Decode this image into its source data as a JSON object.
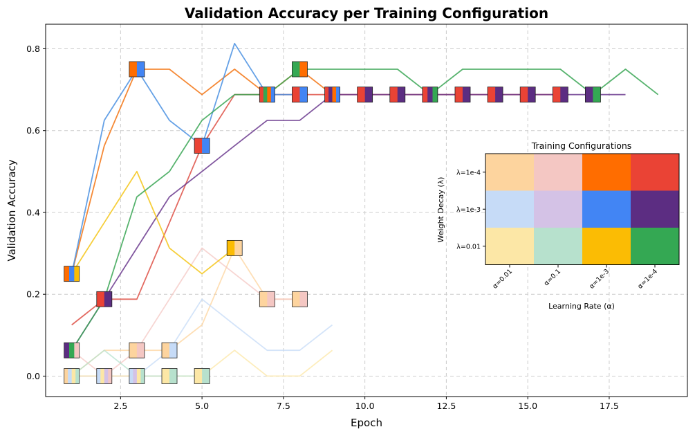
{
  "chart_data": {
    "type": "line",
    "title": "Validation Accuracy per Training Configuration",
    "xlabel": "Epoch",
    "ylabel": "Validation Accuracy",
    "xlim": [
      0.2,
      19.9
    ],
    "ylim": [
      -0.05,
      0.86
    ],
    "xticks": [
      2.5,
      5.0,
      7.5,
      10.0,
      12.5,
      15.0,
      17.5
    ],
    "xtick_labels": [
      "2.5",
      "5.0",
      "7.5",
      "10.0",
      "12.5",
      "15.0",
      "17.5"
    ],
    "yticks": [
      0.0,
      0.2,
      0.4,
      0.6,
      0.8
    ],
    "ytick_labels": [
      "0.0",
      "0.2",
      "0.4",
      "0.6",
      "0.8"
    ],
    "grid": true,
    "series": [
      {
        "key": "lr0.01_wd1e-4",
        "color": "#fdd49e",
        "alpha": 0.75,
        "x": [
          1,
          2,
          3,
          4,
          5,
          6,
          7,
          8
        ],
        "values": [
          0.0,
          0.063,
          0.063,
          0.063,
          0.125,
          0.313,
          0.188,
          0.188
        ]
      },
      {
        "key": "lr0.1_wd1e-4",
        "color": "#f4c7c3",
        "alpha": 0.75,
        "x": [
          1,
          2,
          3,
          4,
          5,
          6,
          7,
          8
        ],
        "values": [
          0.063,
          0.0,
          0.063,
          0.188,
          0.313,
          0.25,
          0.188,
          0.188
        ]
      },
      {
        "key": "lr1e-3_wd1e-4",
        "color": "#f47c20",
        "alpha": 0.9,
        "x": [
          1,
          2,
          3,
          4,
          5,
          6,
          7,
          8,
          9
        ],
        "values": [
          0.25,
          0.563,
          0.75,
          0.75,
          0.688,
          0.75,
          0.688,
          0.75,
          0.688
        ]
      },
      {
        "key": "lr1e-4_wd1e-4",
        "color": "#e05a50",
        "alpha": 0.9,
        "x": [
          1,
          2,
          3,
          4,
          5,
          6,
          7,
          8,
          9,
          10,
          11,
          12,
          13,
          14,
          15,
          16
        ],
        "values": [
          0.125,
          0.188,
          0.188,
          0.375,
          0.563,
          0.688,
          0.688,
          0.688,
          0.688,
          0.688,
          0.688,
          0.688,
          0.688,
          0.688,
          0.688,
          0.688
        ]
      },
      {
        "key": "lr0.01_wd1e-3",
        "color": "#c6dbf7",
        "alpha": 0.75,
        "x": [
          1,
          2,
          3,
          4,
          5,
          6,
          7,
          8,
          9
        ],
        "values": [
          0.0,
          0.0,
          0.0,
          0.063,
          0.188,
          0.125,
          0.063,
          0.063,
          0.125
        ]
      },
      {
        "key": "lr0.1_wd1e-3",
        "color": "#d4c2e6",
        "alpha": 0.75,
        "x": [
          1,
          2,
          3,
          4
        ],
        "values": [
          0.0,
          0.0,
          0.0,
          0.0
        ]
      },
      {
        "key": "lr1e-3_wd1e-3",
        "color": "#4a90e2",
        "alpha": 0.85,
        "x": [
          1,
          2,
          3,
          4,
          5,
          6,
          7,
          8
        ],
        "values": [
          0.25,
          0.625,
          0.75,
          0.625,
          0.563,
          0.813,
          0.688,
          0.688
        ]
      },
      {
        "key": "lr1e-4_wd1e-3",
        "color": "#6b3a8e",
        "alpha": 0.85,
        "x": [
          1,
          2,
          3,
          4,
          5,
          6,
          7,
          8,
          9,
          10,
          11,
          12,
          13,
          14,
          15,
          16,
          17,
          18
        ],
        "values": [
          0.063,
          0.188,
          0.313,
          0.438,
          0.5,
          0.563,
          0.625,
          0.625,
          0.688,
          0.688,
          0.688,
          0.688,
          0.688,
          0.688,
          0.688,
          0.688,
          0.688,
          0.688
        ]
      },
      {
        "key": "lr0.01_wd0.01",
        "color": "#fce7a6",
        "alpha": 0.75,
        "x": [
          1,
          2,
          3,
          4,
          5,
          6,
          7,
          8,
          9
        ],
        "values": [
          0.0,
          0.0,
          0.0,
          0.0,
          0.0,
          0.063,
          0.0,
          0.0,
          0.063
        ]
      },
      {
        "key": "lr0.1_wd0.01",
        "color": "#b7e1cd",
        "alpha": 0.75,
        "x": [
          1,
          2,
          3,
          4,
          5
        ],
        "values": [
          0.0,
          0.063,
          0.0,
          0.0,
          0.0
        ]
      },
      {
        "key": "lr1e-3_wd0.01",
        "color": "#f5c518",
        "alpha": 0.85,
        "x": [
          1,
          2,
          3,
          4,
          5,
          6
        ],
        "values": [
          0.25,
          0.375,
          0.5,
          0.313,
          0.25,
          0.313
        ]
      },
      {
        "key": "lr1e-4_wd0.01",
        "color": "#3aa655",
        "alpha": 0.85,
        "x": [
          1,
          2,
          3,
          4,
          5,
          6,
          7,
          8,
          9,
          10,
          11,
          12,
          13,
          14,
          15,
          16,
          17,
          18,
          19
        ],
        "values": [
          0.063,
          0.188,
          0.438,
          0.5,
          0.625,
          0.688,
          0.688,
          0.75,
          0.75,
          0.75,
          0.75,
          0.688,
          0.75,
          0.75,
          0.75,
          0.75,
          0.688,
          0.75,
          0.688
        ]
      }
    ],
    "markers": [
      {
        "x": 1,
        "y": 0.25,
        "colors": [
          "#ff6d00",
          "#4285f4",
          "#fbbc04"
        ]
      },
      {
        "x": 3,
        "y": 0.75,
        "colors": [
          "#ff6d00",
          "#4285f4"
        ]
      },
      {
        "x": 5,
        "y": 0.563,
        "colors": [
          "#ea4335",
          "#4285f4"
        ]
      },
      {
        "x": 6,
        "y": 0.313,
        "colors": [
          "#fbbc04",
          "#fdd49e"
        ]
      },
      {
        "x": 2,
        "y": 0.188,
        "colors": [
          "#ea4335",
          "#5c2d82"
        ]
      },
      {
        "x": 1,
        "y": 0.063,
        "colors": [
          "#5c2d82",
          "#34a853",
          "#f4c7c3"
        ]
      },
      {
        "x": 3,
        "y": 0.063,
        "colors": [
          "#fdd49e",
          "#f4c7c3"
        ]
      },
      {
        "x": 4,
        "y": 0.063,
        "colors": [
          "#fdd49e",
          "#c6dbf7"
        ]
      },
      {
        "x": 1,
        "y": 0.0,
        "colors": [
          "#fdd49e",
          "#c6dbf7",
          "#fce7a6",
          "#b7e1cd"
        ]
      },
      {
        "x": 2,
        "y": 0.0,
        "colors": [
          "#c6dbf7",
          "#fce7a6",
          "#d4c2e6",
          "#f4c7c3"
        ]
      },
      {
        "x": 3,
        "y": 0.0,
        "colors": [
          "#c6dbf7",
          "#d4c2e6",
          "#fce7a6",
          "#b7e1cd"
        ]
      },
      {
        "x": 4,
        "y": 0.0,
        "colors": [
          "#fce7a6",
          "#b7e1cd"
        ]
      },
      {
        "x": 5,
        "y": 0.0,
        "colors": [
          "#fce7a6",
          "#b7e1cd"
        ]
      },
      {
        "x": 7,
        "y": 0.188,
        "colors": [
          "#fdd49e",
          "#f4c7c3"
        ]
      },
      {
        "x": 8,
        "y": 0.188,
        "colors": [
          "#fdd49e",
          "#f4c7c3"
        ]
      },
      {
        "x": 7,
        "y": 0.688,
        "colors": [
          "#ea4335",
          "#34a853",
          "#ff6d00",
          "#4285f4"
        ]
      },
      {
        "x": 8,
        "y": 0.75,
        "colors": [
          "#34a853",
          "#ff6d00"
        ]
      },
      {
        "x": 8,
        "y": 0.688,
        "colors": [
          "#ea4335",
          "#4285f4"
        ]
      },
      {
        "x": 9,
        "y": 0.688,
        "colors": [
          "#ea4335",
          "#5c2d82",
          "#ff6d00",
          "#4285f4"
        ]
      },
      {
        "x": 10,
        "y": 0.688,
        "colors": [
          "#ea4335",
          "#5c2d82"
        ]
      },
      {
        "x": 11,
        "y": 0.688,
        "colors": [
          "#ea4335",
          "#5c2d82"
        ]
      },
      {
        "x": 12,
        "y": 0.688,
        "colors": [
          "#ea4335",
          "#5c2d82",
          "#34a853"
        ]
      },
      {
        "x": 13,
        "y": 0.688,
        "colors": [
          "#ea4335",
          "#5c2d82"
        ]
      },
      {
        "x": 14,
        "y": 0.688,
        "colors": [
          "#ea4335",
          "#5c2d82"
        ]
      },
      {
        "x": 15,
        "y": 0.688,
        "colors": [
          "#ea4335",
          "#5c2d82"
        ]
      },
      {
        "x": 16,
        "y": 0.688,
        "colors": [
          "#ea4335",
          "#5c2d82"
        ]
      },
      {
        "x": 17,
        "y": 0.688,
        "colors": [
          "#5c2d82",
          "#34a853"
        ]
      }
    ]
  },
  "inset": {
    "title": "Training Configurations",
    "xlabel": "Learning Rate (α)",
    "ylabel": "Weight Decay (λ)",
    "xtick_labels": [
      "α=0.01",
      "α=0.1",
      "α=1e-3",
      "α=1e-4"
    ],
    "ytick_labels": [
      "λ=1e-4",
      "λ=1e-3",
      "λ=0.01"
    ],
    "grid_colors": [
      [
        "#fdd49e",
        "#f4c7c3",
        "#ff6d00",
        "#ea4335"
      ],
      [
        "#c6dbf7",
        "#d4c2e6",
        "#4285f4",
        "#5c2d82"
      ],
      [
        "#fce7a6",
        "#b7e1cd",
        "#fbbc04",
        "#34a853"
      ]
    ]
  }
}
